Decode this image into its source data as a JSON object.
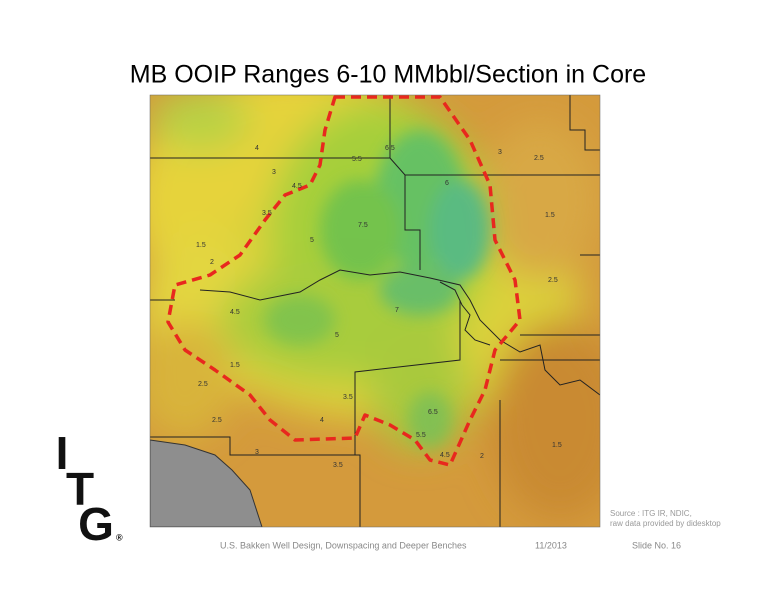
{
  "title": "MB OOIP Ranges 6-10 MMbbl/Section in Core",
  "map": {
    "contour_labels": [
      "4",
      "3",
      "3.5",
      "4.5",
      "5.5",
      "6.5",
      "7.5",
      "6",
      "5",
      "4.5",
      "7",
      "3",
      "2.5",
      "1.5",
      "2",
      "2.5",
      "1.5",
      "3.5",
      "4",
      "5.5",
      "6.5",
      "3",
      "2.5",
      "2",
      "1.5",
      "2.5",
      "1.5",
      "3.5",
      "4.5",
      "5"
    ]
  },
  "logo": {
    "letters": [
      "I",
      "T",
      "G"
    ],
    "mark": "®"
  },
  "source": [
    "Source : ITG IR, NDIC,",
    "raw data provided by didesktop"
  ],
  "footer": {
    "left": "U.S. Bakken Well Design, Downspacing and Deeper Benches",
    "date": "11/2013",
    "slide": "Slide No. 16"
  }
}
